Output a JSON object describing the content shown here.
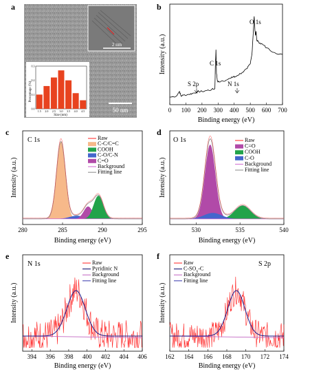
{
  "panels": {
    "a": {
      "letter": "a",
      "scale_bar": "50 nm",
      "inset_scale": "2 nm",
      "histogram": {
        "type": "bar",
        "ylabel": "Percentage (%)",
        "xlabel": "Size (nm)",
        "categories": [
          "1.5",
          "2.0",
          "2.5",
          "3.0",
          "3.5",
          "4.0",
          "4.5"
        ],
        "values": [
          0.1,
          0.16,
          0.22,
          0.27,
          0.2,
          0.11,
          0.06
        ],
        "yticks": [
          "0.0",
          "0.1",
          "0.2",
          "0.3"
        ],
        "xticks": [
          "1.5",
          "2.0",
          "2.5",
          "3.0",
          "3.5",
          "4.0",
          "4.5"
        ],
        "ylim": [
          0,
          0.3
        ],
        "color": "#e8431f"
      }
    },
    "b": {
      "letter": "b",
      "xlabel": "Binding energy (eV)",
      "ylabel": "Intensity (a.u.)",
      "xlim": [
        0,
        700
      ],
      "xticks": [
        "0",
        "100",
        "200",
        "300",
        "400",
        "500",
        "600",
        "700"
      ],
      "annotations": [
        "S 2p",
        "N 1s",
        "C 1s",
        "O 1s"
      ],
      "line_color": "#000000",
      "chart_data": {
        "type": "line",
        "x": [
          0,
          40,
          60,
          70,
          80,
          120,
          140,
          165,
          180,
          200,
          230,
          260,
          280,
          283,
          287,
          290,
          296,
          300,
          320,
          350,
          380,
          398,
          402,
          420,
          450,
          480,
          500,
          510,
          518,
          524,
          528,
          532,
          536,
          540,
          545,
          560,
          580,
          600,
          650,
          700
        ],
        "y": [
          0.05,
          0.06,
          0.11,
          0.06,
          0.07,
          0.08,
          0.09,
          0.1,
          0.11,
          0.11,
          0.12,
          0.13,
          0.14,
          0.38,
          0.55,
          0.3,
          0.22,
          0.21,
          0.22,
          0.23,
          0.25,
          0.27,
          0.26,
          0.28,
          0.31,
          0.35,
          0.4,
          0.5,
          0.72,
          0.9,
          0.78,
          0.7,
          0.74,
          0.65,
          0.64,
          0.62,
          0.6,
          0.57,
          0.52,
          0.5
        ]
      }
    },
    "c": {
      "letter": "c",
      "title": "C 1s",
      "xlabel": "Binding energy (eV)",
      "ylabel": "Intensity (a.u.)",
      "xlim": [
        280,
        295
      ],
      "xticks": [
        "280",
        "285",
        "290",
        "295"
      ],
      "legend": [
        {
          "label": "Raw",
          "color": "#ff2020",
          "kind": "line"
        },
        {
          "label": "C-C/C=C",
          "color": "#f7b98a",
          "kind": "box"
        },
        {
          "label": "COOH",
          "color": "#22a34a",
          "kind": "box"
        },
        {
          "label": "C-O/C-N",
          "color": "#4466cc",
          "kind": "box"
        },
        {
          "label": "C=O",
          "color": "#b14aa8",
          "kind": "box"
        },
        {
          "label": "Background",
          "color": "#d066d0",
          "kind": "line"
        },
        {
          "label": "Fitting line",
          "color": "#888888",
          "kind": "line"
        }
      ],
      "chart_data": {
        "type": "area",
        "components": [
          {
            "name": "C-C/C=C",
            "center": 284.8,
            "sigma": 0.55,
            "height": 1.0
          },
          {
            "name": "COOH",
            "center": 289.5,
            "sigma": 0.6,
            "height": 0.3
          },
          {
            "name": "C-O/C-N",
            "center": 286.8,
            "sigma": 0.9,
            "height": 0.04
          },
          {
            "name": "C=O",
            "center": 288.2,
            "sigma": 0.55,
            "height": 0.16
          }
        ],
        "background": 0.02,
        "xlim": [
          280,
          295
        ]
      }
    },
    "d": {
      "letter": "d",
      "title": "O 1s",
      "xlabel": "Binding energy (eV)",
      "ylabel": "Intensity (a.u.)",
      "xlim": [
        527,
        540
      ],
      "xticks": [
        "530",
        "535",
        "540"
      ],
      "legend": [
        {
          "label": "Raw",
          "color": "#ff2020",
          "kind": "line"
        },
        {
          "label": "C=O",
          "color": "#b14aa8",
          "kind": "box"
        },
        {
          "label": "COOH",
          "color": "#22a34a",
          "kind": "box"
        },
        {
          "label": "C-O",
          "color": "#4466cc",
          "kind": "box"
        },
        {
          "label": "Background",
          "color": "#d066d0",
          "kind": "line"
        },
        {
          "label": "Fitting line",
          "color": "#888888",
          "kind": "line"
        }
      ],
      "chart_data": {
        "type": "area",
        "components": [
          {
            "name": "C=O",
            "center": 531.6,
            "sigma": 0.6,
            "height": 1.0
          },
          {
            "name": "COOH",
            "center": 535.3,
            "sigma": 0.9,
            "height": 0.18
          },
          {
            "name": "C-O",
            "center": 531.9,
            "sigma": 1.0,
            "height": 0.08
          }
        ],
        "background": 0.02,
        "xlim": [
          527,
          540
        ]
      }
    },
    "e": {
      "letter": "e",
      "title": "N 1s",
      "xlabel": "Binding energy (eV)",
      "ylabel": "Intensity (a.u.)",
      "xlim": [
        393,
        406
      ],
      "xticks": [
        "394",
        "396",
        "398",
        "400",
        "402",
        "404",
        "406"
      ],
      "legend": [
        {
          "label": "Raw",
          "color": "#ff2020",
          "kind": "line"
        },
        {
          "label": "Pyridinic N",
          "color": "#000066",
          "kind": "line"
        },
        {
          "label": "Background",
          "color": "#c060c0",
          "kind": "line"
        },
        {
          "label": "Fitting line",
          "color": "#3333aa",
          "kind": "line"
        }
      ],
      "chart_data": {
        "type": "line",
        "peak": {
          "name": "Pyridinic N",
          "center": 398.8,
          "sigma": 1.0,
          "height": 0.55
        },
        "background": 0.15,
        "noise": 0.2,
        "xlim": [
          393,
          406
        ]
      }
    },
    "f": {
      "letter": "f",
      "title": "S 2p",
      "xlabel": "Binding energy (eV)",
      "ylabel": "Intensity (a.u.)",
      "xlim": [
        162,
        174
      ],
      "xticks": [
        "162",
        "164",
        "166",
        "168",
        "170",
        "172",
        "174"
      ],
      "legend": [
        {
          "label": "Raw",
          "color": "#ff2020",
          "kind": "line"
        },
        {
          "label": "C-SOx-C",
          "color": "#000066",
          "kind": "line"
        },
        {
          "label": "Background",
          "color": "#c060c0",
          "kind": "line"
        },
        {
          "label": "Fitting line",
          "color": "#3333aa",
          "kind": "line"
        }
      ],
      "chart_data": {
        "type": "line",
        "peak": {
          "name": "C-SOx-C",
          "center": 169.0,
          "sigma": 0.9,
          "height": 0.55
        },
        "background": 0.15,
        "noise": 0.17,
        "xlim": [
          162,
          174
        ]
      }
    }
  }
}
